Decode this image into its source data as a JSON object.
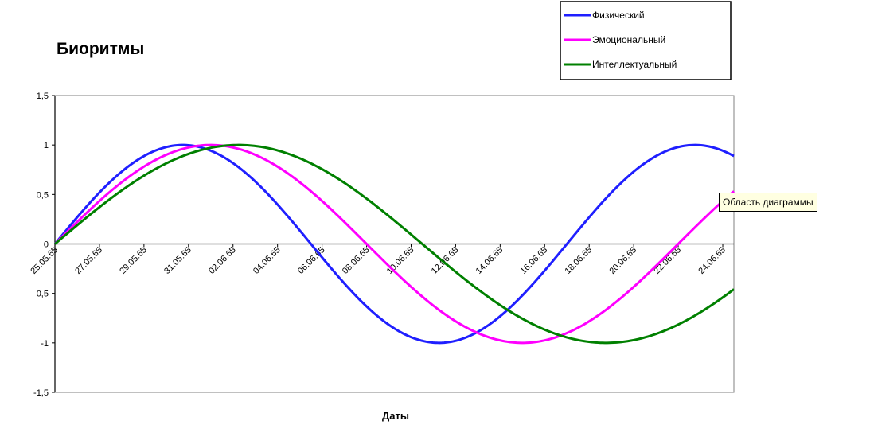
{
  "chart_data": {
    "type": "line",
    "title": "Биоритмы",
    "xlabel": "Даты",
    "ylabel": "",
    "ylim": [
      -1.5,
      1.5
    ],
    "y_ticks": [
      "1,5",
      "1",
      "0,5",
      "0",
      "-0,5",
      "-1",
      "-1,5"
    ],
    "y_tick_values": [
      1.5,
      1,
      0.5,
      0,
      -0.5,
      -1,
      -1.5
    ],
    "x_tick_labels": [
      "25.05.65",
      "27.05.65",
      "29.05.65",
      "31.05.65",
      "02.06.65",
      "04.06.65",
      "06.06.65",
      "08.06.65",
      "10.06.65",
      "12.06.65",
      "14.06.65",
      "16.06.65",
      "18.06.65",
      "20.06.65",
      "22.06.65",
      "24.06.65"
    ],
    "x_day_index": [
      0,
      2,
      4,
      6,
      8,
      10,
      12,
      14,
      16,
      18,
      20,
      22,
      24,
      26,
      28,
      30
    ],
    "grid": false,
    "legend_position": "top-right",
    "series": [
      {
        "name": "Физический",
        "color": "#1f1fff",
        "period_days": 23,
        "phase_days": 0
      },
      {
        "name": "Эмоциональный",
        "color": "#ff00ff",
        "period_days": 28,
        "phase_days": 0
      },
      {
        "name": "Интеллектуальный",
        "color": "#008000",
        "period_days": 33,
        "phase_days": 0
      }
    ],
    "x_range_days": [
      0,
      30.5
    ]
  },
  "tooltip": {
    "text": "Область диаграммы"
  }
}
